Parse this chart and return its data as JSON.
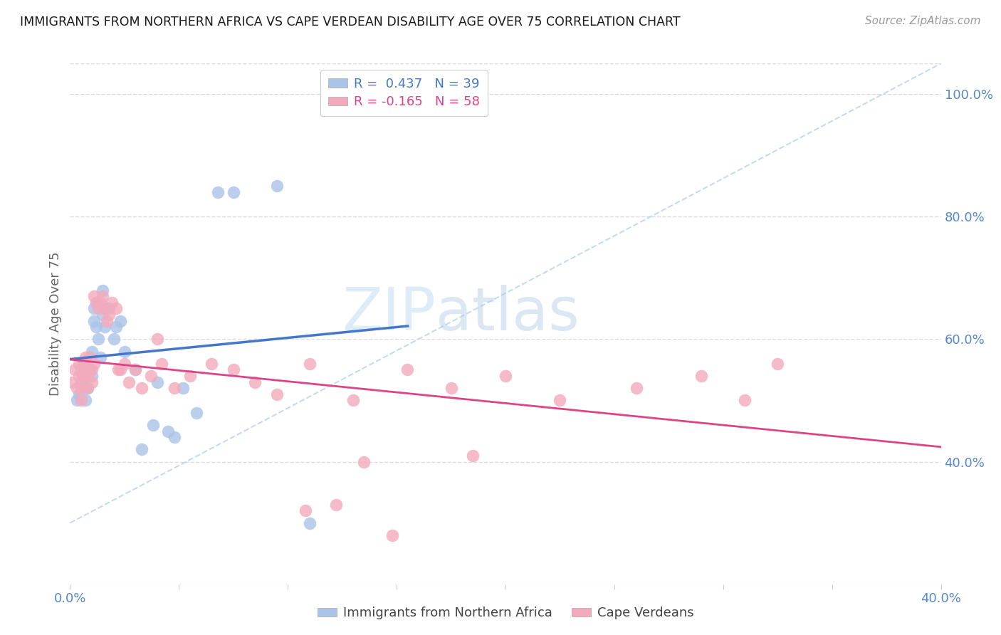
{
  "title": "IMMIGRANTS FROM NORTHERN AFRICA VS CAPE VERDEAN DISABILITY AGE OVER 75 CORRELATION CHART",
  "source": "Source: ZipAtlas.com",
  "ylabel": "Disability Age Over 75",
  "blue_label": "Immigrants from Northern Africa",
  "pink_label": "Cape Verdeans",
  "blue_R": 0.437,
  "blue_N": 39,
  "pink_R": -0.165,
  "pink_N": 58,
  "xlim": [
    0.0,
    0.4
  ],
  "ylim": [
    0.2,
    1.05
  ],
  "right_yticks": [
    0.4,
    0.6,
    0.8,
    1.0
  ],
  "right_yticklabels": [
    "40.0%",
    "60.0%",
    "80.0%",
    "100.0%"
  ],
  "xticks": [
    0.0,
    0.05,
    0.1,
    0.15,
    0.2,
    0.25,
    0.3,
    0.35,
    0.4
  ],
  "xticklabels": [
    "0.0%",
    "",
    "",
    "",
    "",
    "",
    "",
    "",
    "40.0%"
  ],
  "title_color": "#1a1a1a",
  "source_color": "#999999",
  "blue_color": "#aac4e8",
  "pink_color": "#f4aabc",
  "blue_trend_color": "#4477cc",
  "pink_trend_color": "#dd4488",
  "axis_label_color": "#5588cc",
  "grid_color": "#dddddd",
  "background_color": "#ffffff",
  "blue_points_x": [
    0.003,
    0.004,
    0.005,
    0.005,
    0.006,
    0.006,
    0.007,
    0.007,
    0.008,
    0.009,
    0.01,
    0.01,
    0.011,
    0.011,
    0.012,
    0.012,
    0.013,
    0.014,
    0.015,
    0.015,
    0.016,
    0.017,
    0.018,
    0.02,
    0.021,
    0.023,
    0.025,
    0.03,
    0.033,
    0.038,
    0.04,
    0.045,
    0.048,
    0.052,
    0.058,
    0.068,
    0.075,
    0.095,
    0.11
  ],
  "blue_points_y": [
    0.5,
    0.51,
    0.53,
    0.55,
    0.54,
    0.56,
    0.5,
    0.52,
    0.52,
    0.55,
    0.54,
    0.58,
    0.63,
    0.65,
    0.62,
    0.66,
    0.6,
    0.57,
    0.64,
    0.68,
    0.62,
    0.65,
    0.65,
    0.6,
    0.62,
    0.63,
    0.58,
    0.55,
    0.42,
    0.46,
    0.53,
    0.45,
    0.44,
    0.52,
    0.48,
    0.84,
    0.84,
    0.85,
    0.3
  ],
  "pink_points_x": [
    0.001,
    0.002,
    0.003,
    0.004,
    0.004,
    0.005,
    0.005,
    0.006,
    0.006,
    0.007,
    0.007,
    0.008,
    0.008,
    0.009,
    0.009,
    0.01,
    0.01,
    0.011,
    0.011,
    0.012,
    0.013,
    0.014,
    0.015,
    0.016,
    0.017,
    0.018,
    0.019,
    0.021,
    0.022,
    0.023,
    0.025,
    0.027,
    0.03,
    0.033,
    0.037,
    0.04,
    0.042,
    0.048,
    0.055,
    0.065,
    0.075,
    0.085,
    0.095,
    0.11,
    0.13,
    0.155,
    0.175,
    0.2,
    0.225,
    0.26,
    0.29,
    0.31,
    0.325,
    0.185,
    0.148,
    0.135,
    0.122,
    0.108
  ],
  "pink_points_y": [
    0.53,
    0.55,
    0.52,
    0.54,
    0.56,
    0.5,
    0.52,
    0.54,
    0.56,
    0.55,
    0.57,
    0.52,
    0.54,
    0.55,
    0.57,
    0.53,
    0.55,
    0.56,
    0.67,
    0.66,
    0.65,
    0.66,
    0.67,
    0.65,
    0.63,
    0.64,
    0.66,
    0.65,
    0.55,
    0.55,
    0.56,
    0.53,
    0.55,
    0.52,
    0.54,
    0.6,
    0.56,
    0.52,
    0.54,
    0.56,
    0.55,
    0.53,
    0.51,
    0.56,
    0.5,
    0.55,
    0.52,
    0.54,
    0.5,
    0.52,
    0.54,
    0.5,
    0.56,
    0.41,
    0.28,
    0.4,
    0.33,
    0.32
  ]
}
